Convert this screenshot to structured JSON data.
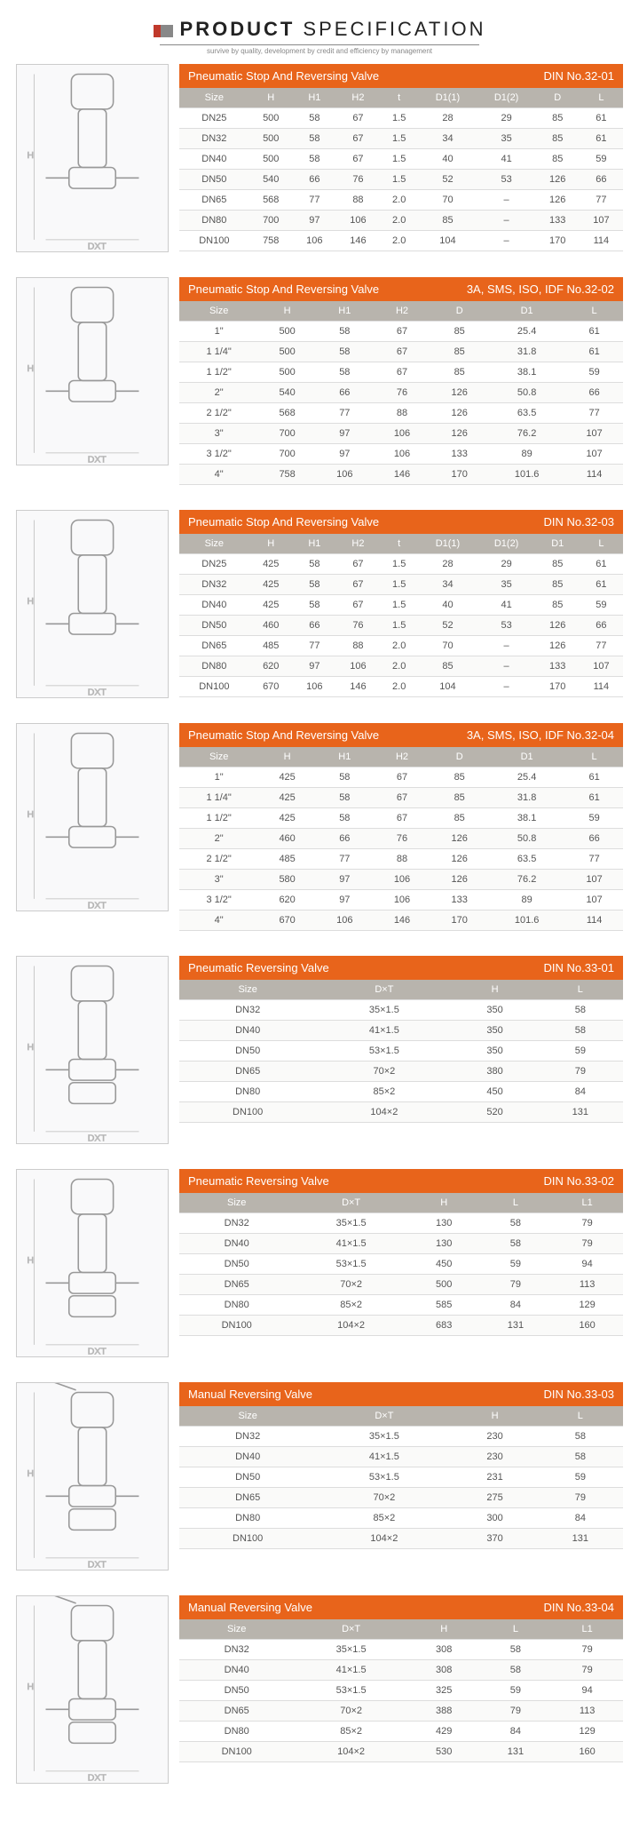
{
  "page_header": {
    "title_bold": "PRODUCT",
    "title_light": "SPECIFICATION",
    "subtitle": "survive by quality, development by credit and efficiency by management"
  },
  "tables": [
    {
      "title": "Pneumatic Stop And Reversing Valve",
      "right_label": "DIN No.32-01",
      "cols": [
        "Size",
        "H",
        "H1",
        "H2",
        "t",
        "D1(1)",
        "D1(2)",
        "D",
        "L"
      ],
      "rows": [
        [
          "DN25",
          "500",
          "58",
          "67",
          "1.5",
          "28",
          "29",
          "85",
          "61"
        ],
        [
          "DN32",
          "500",
          "58",
          "67",
          "1.5",
          "34",
          "35",
          "85",
          "61"
        ],
        [
          "DN40",
          "500",
          "58",
          "67",
          "1.5",
          "40",
          "41",
          "85",
          "59"
        ],
        [
          "DN50",
          "540",
          "66",
          "76",
          "1.5",
          "52",
          "53",
          "126",
          "66"
        ],
        [
          "DN65",
          "568",
          "77",
          "88",
          "2.0",
          "70",
          "–",
          "126",
          "77"
        ],
        [
          "DN80",
          "700",
          "97",
          "106",
          "2.0",
          "85",
          "–",
          "133",
          "107"
        ],
        [
          "DN100",
          "758",
          "106",
          "146",
          "2.0",
          "104",
          "–",
          "170",
          "114"
        ]
      ]
    },
    {
      "title": "Pneumatic Stop And Reversing Valve",
      "right_label": "3A, SMS, ISO, IDF No.32-02",
      "cols": [
        "Size",
        "H",
        "H1",
        "H2",
        "D",
        "D1",
        "L"
      ],
      "rows": [
        [
          "1\"",
          "500",
          "58",
          "67",
          "85",
          "25.4",
          "61"
        ],
        [
          "1 1/4\"",
          "500",
          "58",
          "67",
          "85",
          "31.8",
          "61"
        ],
        [
          "1 1/2\"",
          "500",
          "58",
          "67",
          "85",
          "38.1",
          "59"
        ],
        [
          "2\"",
          "540",
          "66",
          "76",
          "126",
          "50.8",
          "66"
        ],
        [
          "2 1/2\"",
          "568",
          "77",
          "88",
          "126",
          "63.5",
          "77"
        ],
        [
          "3\"",
          "700",
          "97",
          "106",
          "126",
          "76.2",
          "107"
        ],
        [
          "3 1/2\"",
          "700",
          "97",
          "106",
          "133",
          "89",
          "107"
        ],
        [
          "4\"",
          "758",
          "106",
          "146",
          "170",
          "101.6",
          "114"
        ]
      ]
    },
    {
      "title": "Pneumatic Stop And Reversing Valve",
      "right_label": "DIN   No.32-03",
      "cols": [
        "Size",
        "H",
        "H1",
        "H2",
        "t",
        "D1(1)",
        "D1(2)",
        "D1",
        "L"
      ],
      "rows": [
        [
          "DN25",
          "425",
          "58",
          "67",
          "1.5",
          "28",
          "29",
          "85",
          "61"
        ],
        [
          "DN32",
          "425",
          "58",
          "67",
          "1.5",
          "34",
          "35",
          "85",
          "61"
        ],
        [
          "DN40",
          "425",
          "58",
          "67",
          "1.5",
          "40",
          "41",
          "85",
          "59"
        ],
        [
          "DN50",
          "460",
          "66",
          "76",
          "1.5",
          "52",
          "53",
          "126",
          "66"
        ],
        [
          "DN65",
          "485",
          "77",
          "88",
          "2.0",
          "70",
          "–",
          "126",
          "77"
        ],
        [
          "DN80",
          "620",
          "97",
          "106",
          "2.0",
          "85",
          "–",
          "133",
          "107"
        ],
        [
          "DN100",
          "670",
          "106",
          "146",
          "2.0",
          "104",
          "–",
          "170",
          "114"
        ]
      ]
    },
    {
      "title": "Pneumatic Stop And Reversing Valve",
      "right_label": "3A, SMS, ISO, IDF   No.32-04",
      "cols": [
        "Size",
        "H",
        "H1",
        "H2",
        "D",
        "D1",
        "L"
      ],
      "rows": [
        [
          "1\"",
          "425",
          "58",
          "67",
          "85",
          "25.4",
          "61"
        ],
        [
          "1 1/4\"",
          "425",
          "58",
          "67",
          "85",
          "31.8",
          "61"
        ],
        [
          "1 1/2\"",
          "425",
          "58",
          "67",
          "85",
          "38.1",
          "59"
        ],
        [
          "2\"",
          "460",
          "66",
          "76",
          "126",
          "50.8",
          "66"
        ],
        [
          "2 1/2\"",
          "485",
          "77",
          "88",
          "126",
          "63.5",
          "77"
        ],
        [
          "3\"",
          "580",
          "97",
          "106",
          "126",
          "76.2",
          "107"
        ],
        [
          "3 1/2\"",
          "620",
          "97",
          "106",
          "133",
          "89",
          "107"
        ],
        [
          "4\"",
          "670",
          "106",
          "146",
          "170",
          "101.6",
          "114"
        ]
      ]
    },
    {
      "title": "Pneumatic Reversing Valve",
      "right_label": "DIN   No.33-01",
      "cols": [
        "Size",
        "D×T",
        "H",
        "L"
      ],
      "rows": [
        [
          "DN32",
          "35×1.5",
          "350",
          "58"
        ],
        [
          "DN40",
          "41×1.5",
          "350",
          "58"
        ],
        [
          "DN50",
          "53×1.5",
          "350",
          "59"
        ],
        [
          "DN65",
          "70×2",
          "380",
          "79"
        ],
        [
          "DN80",
          "85×2",
          "450",
          "84"
        ],
        [
          "DN100",
          "104×2",
          "520",
          "131"
        ]
      ]
    },
    {
      "title": "Pneumatic Reversing Valve",
      "right_label": "DIN   No.33-02",
      "cols": [
        "Size",
        "D×T",
        "H",
        "L",
        "L1"
      ],
      "rows": [
        [
          "DN32",
          "35×1.5",
          "130",
          "58",
          "79"
        ],
        [
          "DN40",
          "41×1.5",
          "130",
          "58",
          "79"
        ],
        [
          "DN50",
          "53×1.5",
          "450",
          "59",
          "94"
        ],
        [
          "DN65",
          "70×2",
          "500",
          "79",
          "113"
        ],
        [
          "DN80",
          "85×2",
          "585",
          "84",
          "129"
        ],
        [
          "DN100",
          "104×2",
          "683",
          "131",
          "160"
        ]
      ]
    },
    {
      "title": "Manual Reversing Valve",
      "right_label": "DIN   No.33-03",
      "cols": [
        "Size",
        "D×T",
        "H",
        "L"
      ],
      "rows": [
        [
          "DN32",
          "35×1.5",
          "230",
          "58"
        ],
        [
          "DN40",
          "41×1.5",
          "230",
          "58"
        ],
        [
          "DN50",
          "53×1.5",
          "231",
          "59"
        ],
        [
          "DN65",
          "70×2",
          "275",
          "79"
        ],
        [
          "DN80",
          "85×2",
          "300",
          "84"
        ],
        [
          "DN100",
          "104×2",
          "370",
          "131"
        ]
      ]
    },
    {
      "title": "Manual Reversing Valve",
      "right_label": "DIN   No.33-04",
      "cols": [
        "Size",
        "D×T",
        "H",
        "L",
        "L1"
      ],
      "rows": [
        [
          "DN32",
          "35×1.5",
          "308",
          "58",
          "79"
        ],
        [
          "DN40",
          "41×1.5",
          "308",
          "58",
          "79"
        ],
        [
          "DN50",
          "53×1.5",
          "325",
          "59",
          "94"
        ],
        [
          "DN65",
          "70×2",
          "388",
          "79",
          "113"
        ],
        [
          "DN80",
          "85×2",
          "429",
          "84",
          "129"
        ],
        [
          "DN100",
          "104×2",
          "530",
          "131",
          "160"
        ]
      ]
    }
  ],
  "colors": {
    "accent": "#e8641b",
    "thead_alt": "#b8b4ad",
    "border": "#dddddd"
  }
}
